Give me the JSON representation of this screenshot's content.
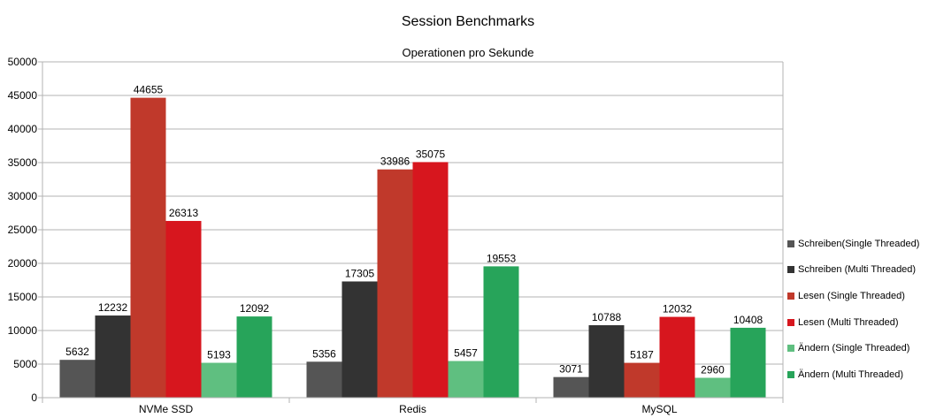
{
  "chart_data": {
    "type": "bar",
    "title": "Session Benchmarks",
    "subtitle": "Operationen pro Sekunde",
    "categories": [
      "NVMe SSD",
      "Redis",
      "MySQL"
    ],
    "ylim": [
      0,
      50000
    ],
    "yticks": [
      0,
      5000,
      10000,
      15000,
      20000,
      25000,
      30000,
      35000,
      40000,
      45000,
      50000
    ],
    "grid": true,
    "legend_position": "right",
    "series": [
      {
        "name": "Schreiben(Single Threaded)",
        "color": "#555555",
        "values": [
          5632,
          5356,
          3071
        ]
      },
      {
        "name": "Schreiben (Multi Threaded)",
        "color": "#333333",
        "values": [
          12232,
          17305,
          10788
        ]
      },
      {
        "name": "Lesen (Single Threaded)",
        "color": "#c0392b",
        "values": [
          44655,
          33986,
          5187
        ]
      },
      {
        "name": "Lesen (Multi Threaded)",
        "color": "#d7161e",
        "values": [
          26313,
          35075,
          12032
        ]
      },
      {
        "name": "Ändern (Single Threaded)",
        "color": "#5fbf80",
        "values": [
          5193,
          5457,
          2960
        ]
      },
      {
        "name": "Ändern (Multi Threaded)",
        "color": "#27a45a",
        "values": [
          12092,
          19553,
          10408
        ]
      }
    ]
  }
}
